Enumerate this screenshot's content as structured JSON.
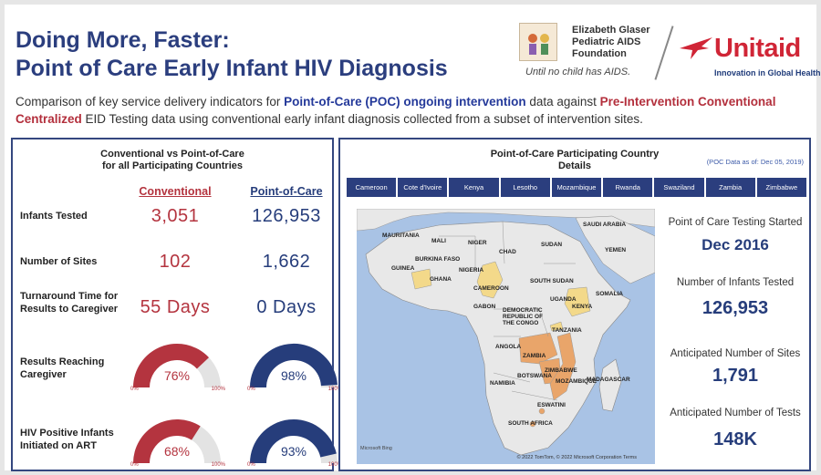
{
  "header": {
    "title_line1": "Doing More, Faster:",
    "title_line2": "Point of Care Early Infant HIV Diagnosis",
    "egpaf_name": "Elizabeth Glaser Pediatric AIDS Foundation",
    "egpaf_tagline": "Until no child has AIDS.",
    "unitaid_name": "Unitaid",
    "unitaid_tagline": "Innovation in Global Health"
  },
  "description": {
    "p1": "Comparison of key service delivery indicators for ",
    "b1": "Point-of-Care (POC) ongoing intervention",
    "p2": " data against ",
    "r1": "Pre-Intervention Conventional Centralized",
    "p3": " EID Testing data using conventional early infant diagnosis collected from a subset of intervention sites."
  },
  "comparison": {
    "title": "Conventional vs Point-of-Care for all Participating Countries",
    "col_conventional": "Conventional",
    "col_poc": "Point-of-Care",
    "rows": [
      {
        "label": "Infants Tested",
        "conventional": "3,051",
        "poc": "126,953"
      },
      {
        "label": "Number of Sites",
        "conventional": "102",
        "poc": "1,662"
      },
      {
        "label": "Turnaround Time for Results to Caregiver",
        "conventional": "55 Days",
        "poc": "0 Days"
      }
    ],
    "gauges": [
      {
        "label": "Results Reaching Caregiver",
        "conventional": 76,
        "conventional_text": "76%",
        "poc": 98,
        "poc_text": "98%"
      },
      {
        "label": "HIV Positive Infants Initiated on ART",
        "conventional": 68,
        "conventional_text": "68%",
        "poc": 93,
        "poc_text": "93%"
      }
    ],
    "gauge_min": "0%",
    "gauge_max": "100%",
    "colors": {
      "conventional": "#b4343f",
      "poc": "#263d7b",
      "track": "#e3e3e3"
    }
  },
  "country_details": {
    "title": "Point-of-Care Participating Country Details",
    "data_note": "(POC Data as of: Dec 05, 2019)",
    "tabs": [
      "Cameroon",
      "Cote d'Ivoire",
      "Kenya",
      "Lesotho",
      "Mozambique",
      "Rwanda",
      "Swaziland",
      "Zambia",
      "Zimbabwe"
    ],
    "kpis": [
      {
        "label": "Point of Care Testing Started",
        "value": "Dec 2016"
      },
      {
        "label": "Number of Infants Tested",
        "value": "126,953"
      },
      {
        "label": "Anticipated Number of Sites",
        "value": "1,791"
      },
      {
        "label": "Anticipated Number of Tests",
        "value": "148K"
      }
    ],
    "map": {
      "labels": [
        "MAURITANIA",
        "MALI",
        "NIGER",
        "SUDAN",
        "SAUDI ARABIA",
        "YEMEN",
        "BURKINA FASO",
        "GUINEA",
        "GHANA",
        "NIGERIA",
        "CHAD",
        "SOUTH SUDAN",
        "SOMALIA",
        "CAMEROON",
        "UGANDA",
        "KENYA",
        "GABON",
        "DEMOCRATIC REPUBLIC OF THE CONGO",
        "TANZANIA",
        "ANGOLA",
        "ZAMBIA",
        "ZIMBABWE",
        "MOZAMBIQUE",
        "NAMIBIA",
        "BOTSWANA",
        "MADAGASCAR",
        "ESWATINI",
        "SOUTH AFRICA"
      ],
      "copyright": "© 2022 TomTom, © 2022 Microsoft Corporation  Terms",
      "brand": "Microsoft Bing",
      "colors": {
        "water": "#a9c3e5",
        "land": "#e8e8e8",
        "highlight_yellow": "#f3d98a",
        "highlight_orange": "#e9a56a"
      }
    }
  }
}
